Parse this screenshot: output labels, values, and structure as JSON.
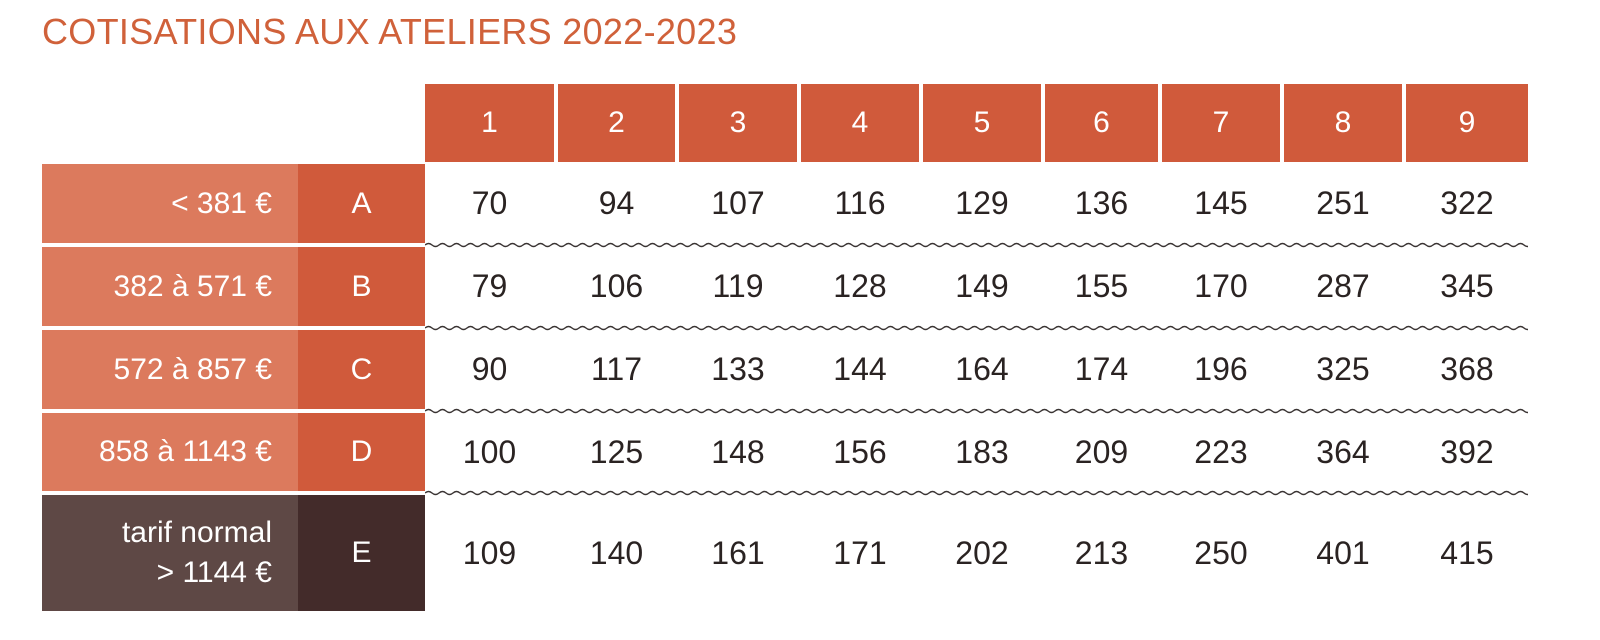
{
  "title": "COTISATIONS AUX ATELIERS 2022-2023",
  "columns": [
    "1",
    "2",
    "3",
    "4",
    "5",
    "6",
    "7",
    "8",
    "9"
  ],
  "rows": [
    {
      "income": "< 381 €",
      "letter": "A",
      "values": [
        "70",
        "94",
        "107",
        "116",
        "129",
        "136",
        "145",
        "251",
        "322"
      ]
    },
    {
      "income": "382 à 571 €",
      "letter": "B",
      "values": [
        "79",
        "106",
        "119",
        "128",
        "149",
        "155",
        "170",
        "287",
        "345"
      ]
    },
    {
      "income": "572 à 857 €",
      "letter": "C",
      "values": [
        "90",
        "117",
        "133",
        "144",
        "164",
        "174",
        "196",
        "325",
        "368"
      ]
    },
    {
      "income": "858 à 1143 €",
      "letter": "D",
      "values": [
        "100",
        "125",
        "148",
        "156",
        "183",
        "209",
        "223",
        "364",
        "392"
      ]
    },
    {
      "income_line1": "tarif normal",
      "income_line2": "> 1144 €",
      "letter": "E",
      "values": [
        "109",
        "140",
        "161",
        "171",
        "202",
        "213",
        "250",
        "401",
        "415"
      ]
    }
  ],
  "colors": {
    "accent": "#d05a3b",
    "accent_light": "#dc7a5d",
    "dark": "#432b2a",
    "dark_light": "#5e4845"
  }
}
